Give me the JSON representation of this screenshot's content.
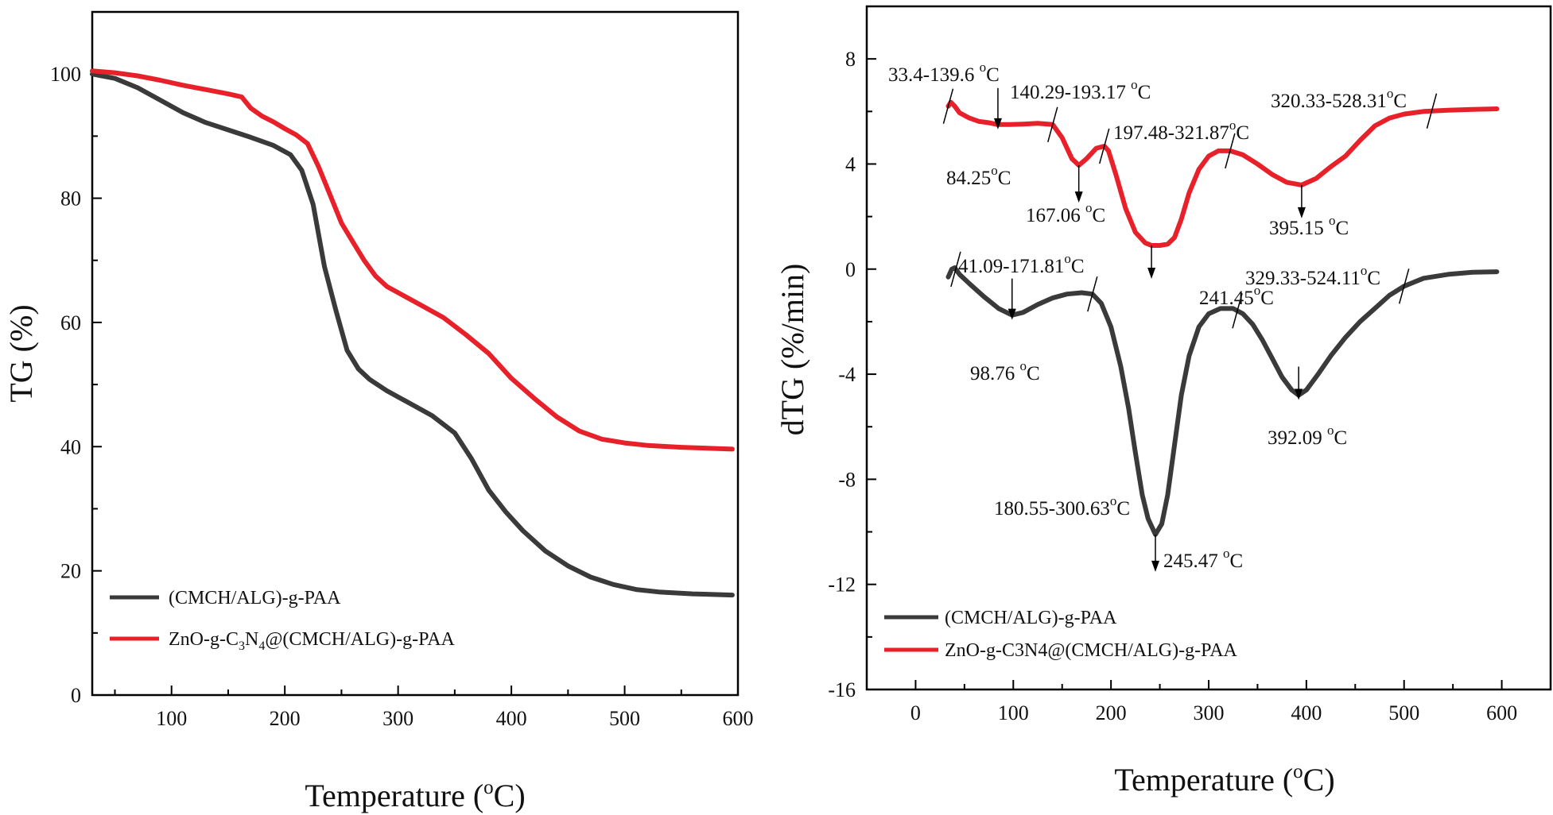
{
  "chart_data": [
    {
      "type": "line",
      "xlabel_main": "Temperature (",
      "xlabel_sup": "o",
      "xlabel_end": "C)",
      "ylabel": "TG (%)",
      "xlim": [
        30,
        600
      ],
      "ylim": [
        0,
        110
      ],
      "xticks": [
        100,
        200,
        300,
        400,
        500,
        600
      ],
      "yticks": [
        0,
        20,
        40,
        60,
        80,
        100
      ],
      "series": [
        {
          "name": "(CMCH/ALG)-g-PAA",
          "color": "#3a3a3a",
          "x": [
            30,
            50,
            70,
            90,
            110,
            130,
            150,
            170,
            190,
            205,
            215,
            225,
            235,
            245,
            255,
            265,
            275,
            290,
            310,
            330,
            350,
            365,
            380,
            395,
            410,
            430,
            450,
            470,
            490,
            510,
            530,
            560,
            595
          ],
          "y": [
            100,
            99.3,
            97.8,
            95.8,
            93.8,
            92.2,
            91.0,
            89.8,
            88.5,
            87.0,
            84.5,
            79.0,
            69.0,
            62.0,
            55.5,
            52.5,
            50.8,
            49.0,
            47.0,
            45.0,
            42.2,
            38.0,
            33.0,
            29.5,
            26.5,
            23.2,
            20.8,
            19.0,
            17.8,
            17.0,
            16.6,
            16.3,
            16.1
          ]
        },
        {
          "name": "ZnO-g-C3N4@(CMCH/ALG)-g-PAA",
          "legend_parts": [
            "ZnO-g-C",
            "3",
            "N",
            "4",
            "@(CMCH/ALG)-g-PAA"
          ],
          "color": "#e8202a",
          "x": [
            30,
            50,
            70,
            90,
            110,
            130,
            150,
            162,
            170,
            180,
            190,
            200,
            210,
            220,
            230,
            240,
            250,
            260,
            270,
            280,
            290,
            300,
            320,
            340,
            360,
            380,
            400,
            420,
            440,
            460,
            480,
            500,
            520,
            550,
            595
          ],
          "y": [
            100.5,
            100.2,
            99.7,
            99.0,
            98.2,
            97.5,
            96.8,
            96.3,
            94.5,
            93.2,
            92.3,
            91.2,
            90.2,
            88.8,
            85.0,
            80.5,
            76.0,
            73.0,
            70.0,
            67.5,
            65.8,
            64.8,
            62.8,
            60.8,
            58.0,
            55.0,
            51.0,
            47.8,
            44.8,
            42.5,
            41.2,
            40.6,
            40.2,
            39.9,
            39.6
          ]
        }
      ]
    },
    {
      "type": "line",
      "xlabel_main": "Temperature (",
      "xlabel_sup": "o",
      "xlabel_end": "C)",
      "ylabel": "dTG (%/min)",
      "xlim": [
        -50,
        650
      ],
      "ylim": [
        -16,
        10
      ],
      "xticks": [
        0,
        100,
        200,
        300,
        400,
        500,
        600
      ],
      "yticks": [
        -16,
        -12,
        -8,
        -4,
        0,
        4,
        8
      ],
      "series": [
        {
          "name": "(CMCH/ALG)-g-PAA",
          "color": "#3a3a3a",
          "x": [
            33.4,
            37,
            40,
            45,
            55,
            70,
            85,
            98.76,
            110,
            125,
            140,
            155,
            170,
            181,
            190,
            200,
            210,
            218,
            225,
            232,
            238,
            245.47,
            252,
            258,
            265,
            272,
            280,
            290,
            300,
            312,
            325,
            335,
            345,
            355,
            365,
            375,
            385,
            392.09,
            400,
            412,
            425,
            440,
            455,
            470,
            485,
            500,
            520,
            545,
            570,
            595
          ],
          "y": [
            -0.3,
            0.0,
            0.05,
            -0.2,
            -0.55,
            -1.05,
            -1.5,
            -1.75,
            -1.65,
            -1.35,
            -1.1,
            -0.95,
            -0.9,
            -0.95,
            -1.3,
            -2.2,
            -3.7,
            -5.3,
            -7.0,
            -8.6,
            -9.5,
            -10.1,
            -9.7,
            -8.6,
            -6.7,
            -4.8,
            -3.3,
            -2.2,
            -1.7,
            -1.5,
            -1.5,
            -1.7,
            -2.1,
            -2.7,
            -3.4,
            -4.1,
            -4.6,
            -4.8,
            -4.6,
            -4.0,
            -3.3,
            -2.6,
            -2.0,
            -1.5,
            -1.0,
            -0.65,
            -0.35,
            -0.2,
            -0.12,
            -0.1
          ]
        },
        {
          "name": "ZnO-g-C3N4@(CMCH/ALG)-g-PAA",
          "color": "#e8202a",
          "x": [
            33.4,
            36,
            40,
            45,
            55,
            65,
            75,
            84.25,
            95,
            110,
            125,
            140.29,
            150,
            160,
            167.06,
            175,
            185,
            193.17,
            197.48,
            205,
            215,
            225,
            235,
            241.45,
            250,
            258,
            265,
            272,
            280,
            290,
            300,
            310,
            321.87,
            335,
            350,
            365,
            380,
            395.15,
            410,
            425,
            440,
            455,
            470,
            485,
            500,
            520,
            545,
            570,
            595
          ],
          "y": [
            6.2,
            6.35,
            6.2,
            5.95,
            5.75,
            5.62,
            5.57,
            5.5,
            5.5,
            5.52,
            5.55,
            5.5,
            5.0,
            4.2,
            3.95,
            4.2,
            4.6,
            4.68,
            4.5,
            3.6,
            2.3,
            1.4,
            1.0,
            0.9,
            0.9,
            0.95,
            1.2,
            1.9,
            2.9,
            3.8,
            4.3,
            4.5,
            4.5,
            4.35,
            4.0,
            3.6,
            3.3,
            3.2,
            3.45,
            3.9,
            4.3,
            4.9,
            5.45,
            5.75,
            5.9,
            6.0,
            6.05,
            6.08,
            6.1
          ]
        }
      ]
    }
  ],
  "annotations": {
    "black": [
      {
        "text": "41.09-171.81",
        "sup": "o",
        "unit": "C"
      },
      {
        "text": "98.76 ",
        "sup": "o",
        "unit": "C"
      },
      {
        "text": "180.55-300.63",
        "sup": "o",
        "unit": "C"
      },
      {
        "text": "245.47 ",
        "sup": "o",
        "unit": "C"
      },
      {
        "text": "329.33-524.11",
        "sup": "o",
        "unit": "C"
      },
      {
        "text": "392.09 ",
        "sup": "o",
        "unit": "C"
      }
    ],
    "red": [
      {
        "text": "33.4-139.6 ",
        "sup": "o",
        "unit": "C"
      },
      {
        "text": "84.25",
        "sup": "o",
        "unit": "C"
      },
      {
        "text": "140.29-193.17 ",
        "sup": "o",
        "unit": "C"
      },
      {
        "text": "167.06 ",
        "sup": "o",
        "unit": "C"
      },
      {
        "text": "197.48-321.87",
        "sup": "o",
        "unit": "C"
      },
      {
        "text": "241.45",
        "sup": "o",
        "unit": "C"
      },
      {
        "text": "320.33-528.31",
        "sup": "o",
        "unit": "C"
      },
      {
        "text": "395.15 ",
        "sup": "o",
        "unit": "C"
      }
    ]
  },
  "legend_right": {
    "black": "(CMCH/ALG)-g-PAA",
    "red": "ZnO-g-C3N4@(CMCH/ALG)-g-PAA"
  }
}
